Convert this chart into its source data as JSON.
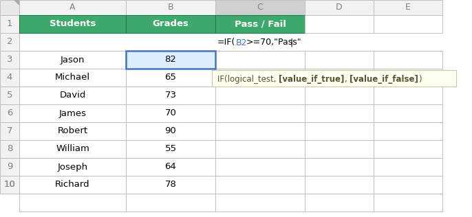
{
  "col_headers": [
    "A",
    "B",
    "C",
    "D",
    "E"
  ],
  "row_numbers": [
    "1",
    "2",
    "3",
    "4",
    "5",
    "6",
    "7",
    "8",
    "9",
    "10"
  ],
  "header_row": [
    "Students",
    "Grades",
    "Pass / Fail"
  ],
  "students": [
    "Jason",
    "Michael",
    "David",
    "James",
    "Robert",
    "William",
    "Joseph",
    "Richard"
  ],
  "grades": [
    82,
    65,
    73,
    70,
    90,
    55,
    64,
    78
  ],
  "header_bg": "#3DAA6B",
  "header_text": "#FFFFFF",
  "cell_bg": "#FFFFFF",
  "grid_color": "#BFBFBF",
  "col_header_bg": "#F2F2F2",
  "col_header_text": "#808080",
  "selected_cell_border": "#4472C4",
  "selected_cell_bg": "#DDEEFF",
  "formula_color_b2": "#4472C4",
  "tooltip_bg": "#FFFEF0",
  "tooltip_border": "#C8C8A0",
  "c_header_bg": "#D0D0D0",
  "fig_bg": "#FFFFFF",
  "rn_col_bg": "#F2F2F2",
  "rn_col_text": "#808080",
  "corner_bg": "#E8E8E8",
  "fig_w": 6.86,
  "fig_h": 3.16,
  "dpi": 100
}
